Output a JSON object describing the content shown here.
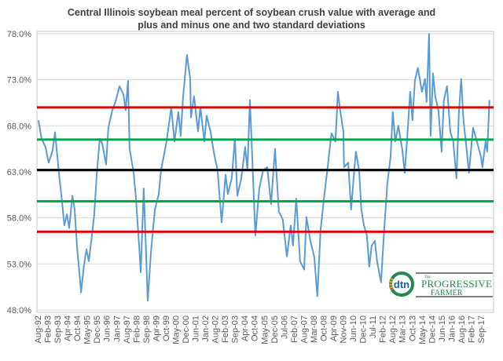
{
  "chart_data": {
    "type": "line",
    "title": "Central Illinois soybean meal percent of soybean crush value with average and plus and minus one and two standard deviations",
    "title_lines": [
      "Central Illinois soybean meal percent of soybean crush value with average and",
      "plus and minus one and two standard deviations"
    ],
    "xlabel": "",
    "ylabel": "",
    "ylim": [
      48,
      78
    ],
    "yticks": [
      48,
      53,
      58,
      63,
      68,
      73,
      78
    ],
    "ytick_labels": [
      "48.0%",
      "53.0%",
      "58.0%",
      "63.0%",
      "68.0%",
      "73.0%",
      "78.0%"
    ],
    "xlim": [
      1992.55,
      2018.2
    ],
    "xtick_labels": [
      "Aug-92",
      "Feb-93",
      "Sep-93",
      "Apr-94",
      "Oct-94",
      "May-95",
      "Dec-95",
      "Jun-96",
      "Jan-97",
      "Aug-97",
      "Feb-98",
      "Sep-98",
      "Apr-99",
      "Oct-99",
      "May-00",
      "Dec-00",
      "Jun-01",
      "Jan-02",
      "Aug-02",
      "Feb-03",
      "Sep-03",
      "Apr-04",
      "Oct-04",
      "May-05",
      "Dec-05",
      "Jul-06",
      "Feb-07",
      "Aug-07",
      "Mar-08",
      "Oct-08",
      "Apr-09",
      "Nov-09",
      "Jun-10",
      "Dec-10",
      "Jul-11",
      "Feb-12",
      "Aug-12",
      "Mar-13",
      "Oct-13",
      "May-14",
      "Dec-14",
      "Jun-15",
      "Jan-16",
      "Aug-16",
      "Feb-17",
      "Sep-17"
    ],
    "grid": true,
    "series": [
      {
        "name": "Soybean meal % of crush value",
        "color": "#5b9bd5",
        "x": [
          1992.62,
          1992.8,
          1993.02,
          1993.2,
          1993.42,
          1993.56,
          1993.78,
          1993.91,
          1994.09,
          1994.23,
          1994.36,
          1994.54,
          1994.67,
          1994.8,
          1994.98,
          1995.03,
          1995.2,
          1995.34,
          1995.47,
          1995.65,
          1995.78,
          1995.92,
          1996.09,
          1996.23,
          1996.45,
          1996.58,
          1996.8,
          1996.98,
          1997.21,
          1997.43,
          1997.56,
          1997.69,
          1997.78,
          1998.01,
          1998.14,
          1998.32,
          1998.41,
          1998.58,
          1998.81,
          1998.98,
          1999.21,
          1999.43,
          1999.56,
          1999.87,
          2000.14,
          2000.32,
          2000.54,
          2000.67,
          2000.81,
          2001.03,
          2001.21,
          2001.25,
          2001.43,
          2001.65,
          2001.79,
          2002.01,
          2002.14,
          2002.36,
          2002.54,
          2002.76,
          2002.99,
          2003.21,
          2003.34,
          2003.56,
          2003.74,
          2003.88,
          2004.1,
          2004.32,
          2004.45,
          2004.59,
          2004.77,
          2004.9,
          2005.12,
          2005.34,
          2005.57,
          2005.79,
          2006.01,
          2006.23,
          2006.45,
          2006.68,
          2006.9,
          2007.03,
          2007.21,
          2007.43,
          2007.66,
          2007.79,
          2008.01,
          2008.23,
          2008.41,
          2008.59,
          2008.81,
          2008.99,
          2009.21,
          2009.43,
          2009.57,
          2009.7,
          2009.88,
          2009.92,
          2010.15,
          2010.32,
          2010.46,
          2010.59,
          2010.77,
          2010.9,
          2011.04,
          2011.21,
          2011.35,
          2011.48,
          2011.66,
          2011.79,
          2012.01,
          2012.19,
          2012.37,
          2012.55,
          2012.68,
          2012.81,
          2012.99,
          2013.21,
          2013.35,
          2013.48,
          2013.66,
          2013.79,
          2013.93,
          2014.1,
          2014.33,
          2014.5,
          2014.59,
          2014.73,
          2014.82,
          2014.95,
          2015.08,
          2015.26,
          2015.44,
          2015.57,
          2015.75,
          2015.93,
          2016.1,
          2016.28,
          2016.42,
          2016.55,
          2016.68,
          2016.82,
          2016.99,
          2017.22,
          2017.44,
          2017.67,
          2017.75,
          2017.93,
          2018.02,
          2018.15
        ],
        "values": [
          68.6,
          66.6,
          65.7,
          64.0,
          65.3,
          67.3,
          62.9,
          60.6,
          57.2,
          58.4,
          56.9,
          60.4,
          58.9,
          55.0,
          51.2,
          49.9,
          52.9,
          54.6,
          53.3,
          56.1,
          58.4,
          62.7,
          66.6,
          66.1,
          63.8,
          67.8,
          69.7,
          70.6,
          72.3,
          71.4,
          69.7,
          72.9,
          65.5,
          62.9,
          60.1,
          55.0,
          52.1,
          61.2,
          49.0,
          54.1,
          58.9,
          60.6,
          63.2,
          66.3,
          70.0,
          66.3,
          69.5,
          66.9,
          71.2,
          75.7,
          73.1,
          68.9,
          71.2,
          67.4,
          70.0,
          66.3,
          69.1,
          67.4,
          65.2,
          63.2,
          57.5,
          62.7,
          60.6,
          62.3,
          66.6,
          60.4,
          62.3,
          65.7,
          63.2,
          70.8,
          62.3,
          56.1,
          61.2,
          63.2,
          63.5,
          59.5,
          65.5,
          58.7,
          57.8,
          53.8,
          57.2,
          55.0,
          60.1,
          53.3,
          52.4,
          58.1,
          55.5,
          53.8,
          49.5,
          56.7,
          60.6,
          63.5,
          67.2,
          66.3,
          71.7,
          69.7,
          67.4,
          63.5,
          64.0,
          58.9,
          62.3,
          65.2,
          63.2,
          58.9,
          57.2,
          56.1,
          52.7,
          55.0,
          55.5,
          53.3,
          51.0,
          56.7,
          61.8,
          64.6,
          69.5,
          66.3,
          68.0,
          65.5,
          62.9,
          66.3,
          71.7,
          68.6,
          72.9,
          74.3,
          71.7,
          73.1,
          70.6,
          78.0,
          66.9,
          73.7,
          71.2,
          69.7,
          65.2,
          70.8,
          72.3,
          67.4,
          66.3,
          62.3,
          69.5,
          73.1,
          68.6,
          66.1,
          62.9,
          67.8,
          66.3,
          64.6,
          63.5,
          66.3,
          65.2,
          70.8
        ]
      }
    ],
    "reference_lines": [
      {
        "value": 70.0,
        "color": "#e00000"
      },
      {
        "value": 66.5,
        "color": "#00a650"
      },
      {
        "value": 63.2,
        "color": "#000000"
      },
      {
        "value": 59.8,
        "color": "#00a650"
      },
      {
        "value": 56.5,
        "color": "#e00000"
      }
    ]
  },
  "logo": {
    "brand": "dtn",
    "name_line1": "PROGRESSIVE",
    "name_line2": "FARMER",
    "prefix": "The",
    "color": "#1f8a4c"
  }
}
